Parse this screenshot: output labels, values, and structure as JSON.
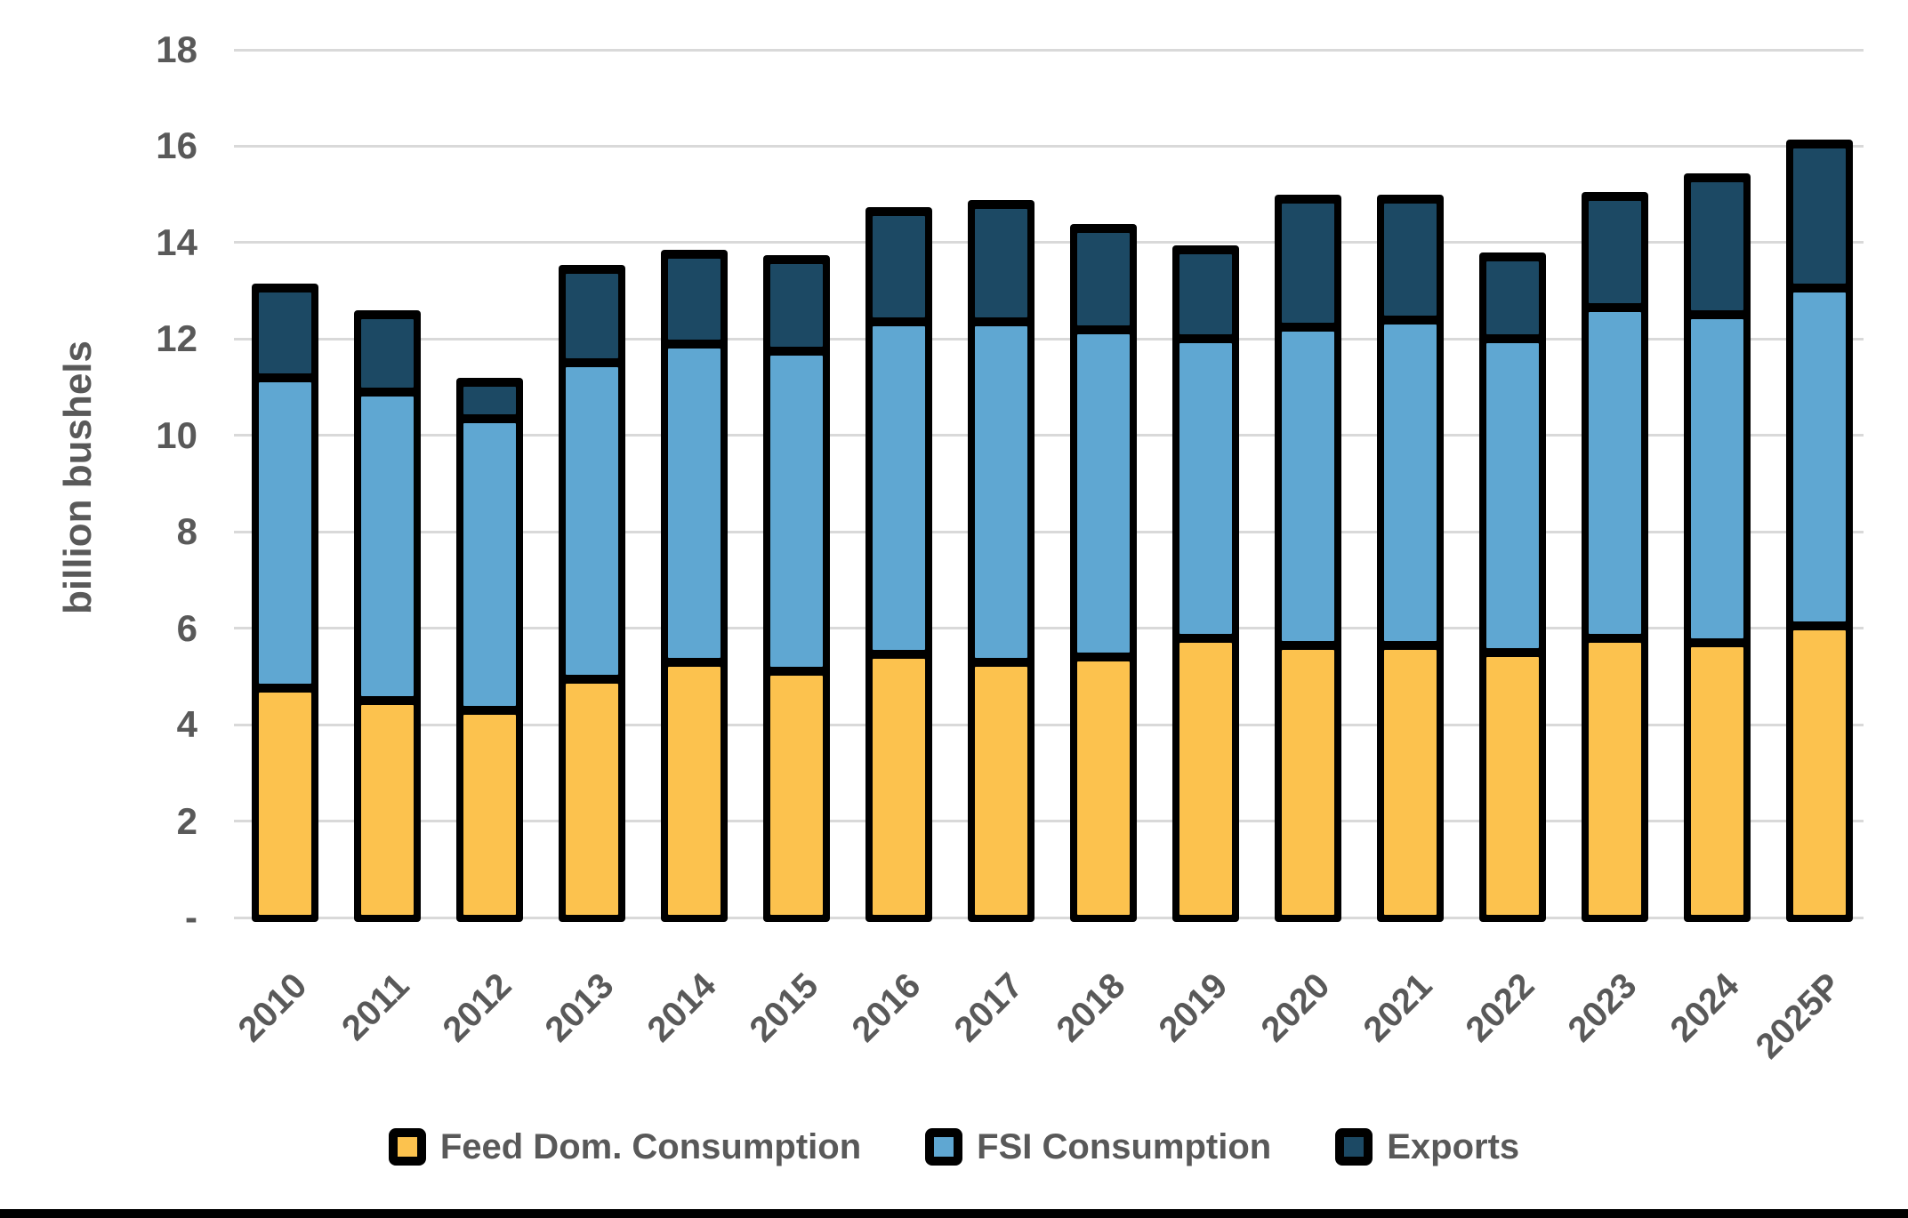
{
  "y_axis": {
    "title": "billion bushels",
    "tick_labels": [
      "18",
      "16",
      "14",
      "12",
      "10",
      "8",
      "6",
      "4",
      "2",
      "-"
    ],
    "min": 0,
    "max": 18,
    "tick_step": 2
  },
  "legend": {
    "items": [
      {
        "label": "Feed Dom. Consumption",
        "color": "#FCC24E"
      },
      {
        "label": "FSI Consumption",
        "color": "#5FA7D2"
      },
      {
        "label": "Exports",
        "color": "#1C4964"
      }
    ]
  },
  "colors": {
    "bar_border": "#000000",
    "gridline": "#D9D9D9",
    "axis_text": "#595959",
    "background": "#FFFFFF",
    "feed": "#FCC24E",
    "fsi": "#5FA7D2",
    "exports": "#1C4964"
  },
  "chart_data": {
    "type": "bar",
    "stacked": true,
    "title": "",
    "xlabel": "",
    "ylabel": "billion bushels",
    "ylim": [
      0,
      18
    ],
    "ytick_step": 2,
    "grid": true,
    "legend_position": "bottom",
    "categories": [
      "2010",
      "2011",
      "2012",
      "2013",
      "2014",
      "2015",
      "2016",
      "2017",
      "2018",
      "2019",
      "2020",
      "2021",
      "2022",
      "2023",
      "2024",
      "2025P"
    ],
    "series": [
      {
        "name": "Feed Dom. Consumption",
        "color": "#FCC24E",
        "values": [
          4.75,
          4.5,
          4.3,
          4.95,
          5.3,
          5.1,
          5.45,
          5.3,
          5.4,
          5.8,
          5.65,
          5.65,
          5.5,
          5.8,
          5.7,
          6.05
        ]
      },
      {
        "name": "FSI Consumption",
        "color": "#5FA7D2",
        "values": [
          6.45,
          6.4,
          6.05,
          6.55,
          6.6,
          6.65,
          6.9,
          7.05,
          6.8,
          6.2,
          6.6,
          6.75,
          6.5,
          6.85,
          6.8,
          7.0
        ]
      },
      {
        "name": "Exports",
        "color": "#1C4964",
        "values": [
          1.85,
          1.6,
          0.75,
          1.95,
          1.85,
          1.9,
          2.3,
          2.45,
          2.1,
          1.85,
          2.65,
          2.5,
          1.7,
          2.3,
          2.85,
          3.0
        ]
      }
    ],
    "totals": [
      13.05,
      12.5,
      11.1,
      13.45,
      13.75,
      13.65,
      14.65,
      14.8,
      14.3,
      13.85,
      14.9,
      14.9,
      13.7,
      14.95,
      15.35,
      16.05
    ]
  }
}
